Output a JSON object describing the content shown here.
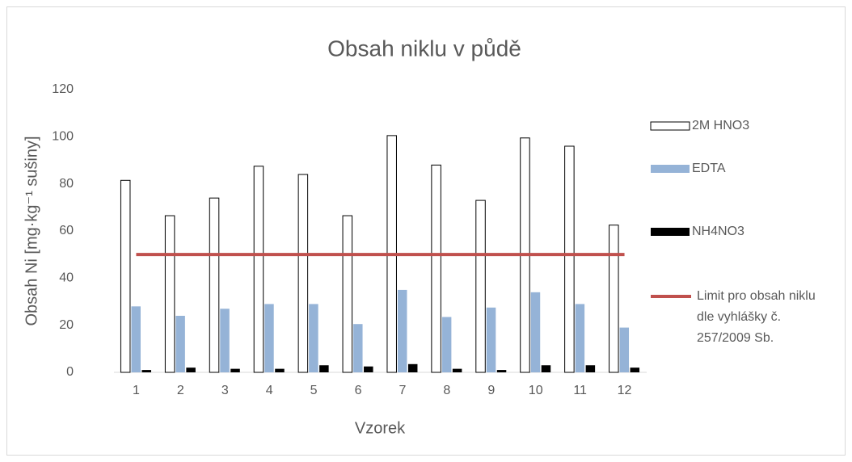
{
  "chart_data": {
    "type": "bar",
    "title": "Obsah niklu v půdě",
    "x_label": "Vzorek",
    "y_label": "Obsah Ni [mg·kg⁻¹ sušiny]",
    "categories": [
      "1",
      "2",
      "3",
      "4",
      "5",
      "6",
      "7",
      "8",
      "9",
      "10",
      "11",
      "12"
    ],
    "series": [
      {
        "name": "2M HNO3",
        "type": "bar",
        "color": "#ffffff",
        "values": [
          81.5,
          66.5,
          74,
          87.5,
          84,
          66.5,
          100.5,
          88,
          73,
          99.5,
          96,
          62.5
        ]
      },
      {
        "name": "EDTA",
        "type": "bar",
        "color": "#95b3d7",
        "values": [
          28,
          24,
          27,
          29,
          29,
          20.5,
          35,
          23.5,
          27.5,
          34,
          29,
          19
        ]
      },
      {
        "name": "NH4NO3",
        "type": "bar",
        "color": "#000000",
        "values": [
          1,
          2,
          1.5,
          1.5,
          3,
          2.5,
          3.5,
          1.5,
          1,
          3,
          3,
          2
        ]
      },
      {
        "name": "Limit pro obsah niklu dle vyhlášky č. 257/2009 Sb.",
        "type": "line",
        "color": "#c0504d",
        "values": [
          50,
          50,
          50,
          50,
          50,
          50,
          50,
          50,
          50,
          50,
          50,
          50
        ]
      }
    ],
    "ylim": [
      0,
      120
    ],
    "yticks": [
      0,
      20,
      40,
      60,
      80,
      100,
      120
    ],
    "grid": false,
    "legend": "right"
  }
}
